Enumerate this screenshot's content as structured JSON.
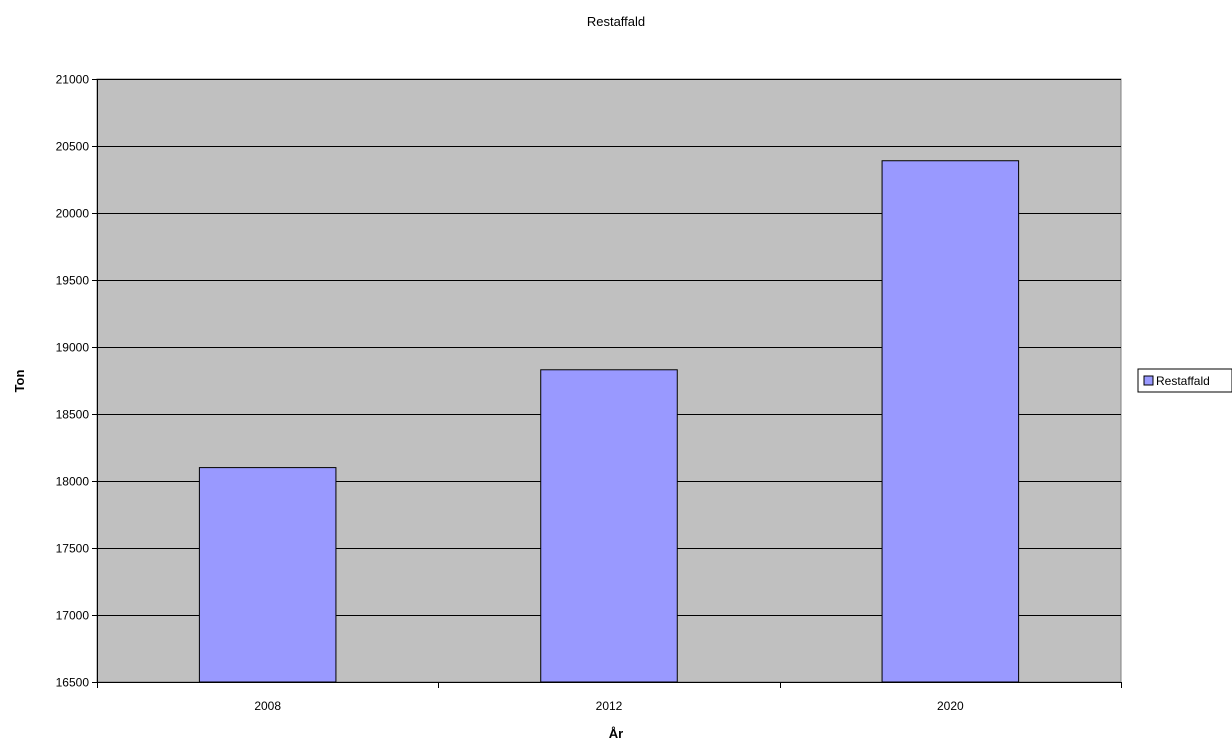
{
  "chart_data": {
    "type": "bar",
    "title": "Restaffald",
    "xlabel": "År",
    "ylabel": "Ton",
    "categories": [
      "2008",
      "2012",
      "2020"
    ],
    "series": [
      {
        "name": "Restaffald",
        "values": [
          18100,
          18830,
          20390
        ]
      }
    ],
    "ylim": [
      16500,
      21000
    ],
    "yticks": [
      16500,
      17000,
      17500,
      18000,
      18500,
      19000,
      19500,
      20000,
      20500,
      21000
    ],
    "grid": true,
    "legend": "right",
    "colors": {
      "bar": "#9999ff",
      "plot_background": "#c0c0c0",
      "gridline": "#000000"
    }
  }
}
